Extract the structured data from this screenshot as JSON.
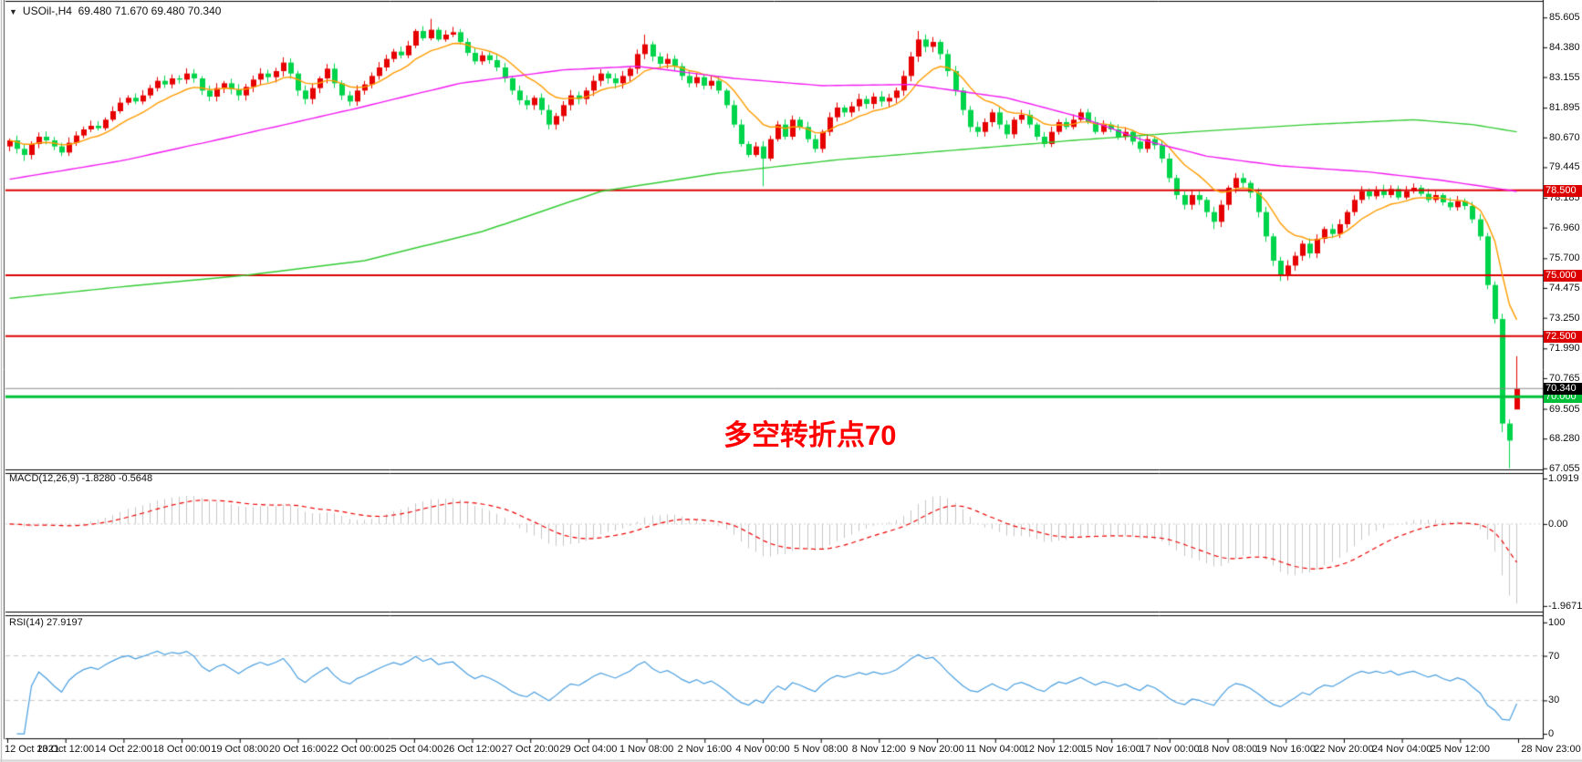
{
  "window": {
    "symbol_title": "USOil-,H4",
    "ohlc_text": "69.480 71.670 69.480 70.340",
    "dropdown_icon": "▼"
  },
  "main_chart": {
    "annotation": {
      "text": "多空转折点70",
      "color": "#ff0000"
    },
    "price_axis_labels": [
      "85.605",
      "84.380",
      "83.155",
      "81.895",
      "80.670",
      "79.445",
      "78.185",
      "76.960",
      "75.700",
      "74.475",
      "73.250",
      "71.990",
      "70.765",
      "69.505",
      "68.280",
      "67.055"
    ],
    "hlines": [
      {
        "price": 78.5,
        "label": "78.500",
        "color": "#dd0000",
        "width": 2
      },
      {
        "price": 75.0,
        "label": "75.000",
        "color": "#dd0000",
        "width": 2
      },
      {
        "price": 72.5,
        "label": "72.500",
        "color": "#dd0000",
        "width": 2
      },
      {
        "price": 70.0,
        "label": "70.000",
        "color": "#00c03a",
        "width": 3
      }
    ],
    "current_price": {
      "price": 70.34,
      "label": "70.340",
      "line_color": "#8a8a8a",
      "box_bg": "#000000"
    }
  },
  "macd_panel": {
    "label": "MACD(12,26,9) -1.8280 -0.5648",
    "params": {
      "fast": 12,
      "slow": 26,
      "signal": 9
    },
    "axis_labels": [
      {
        "v": 1.0919,
        "t": "1.0919"
      },
      {
        "v": 0,
        "t": "0.00"
      },
      {
        "v": -1.9671,
        "t": "-1.9671"
      }
    ],
    "histogram_color": "#c6c6c6",
    "signal_color": "#ee0000",
    "view": [
      -2.08,
      1.2
    ]
  },
  "rsi_panel": {
    "label": "RSI(14) 27.9197",
    "period": 14,
    "axis_labels": [
      {
        "v": 100,
        "t": "100"
      },
      {
        "v": 70,
        "t": "70"
      },
      {
        "v": 30,
        "t": "30"
      },
      {
        "v": 0,
        "t": "0"
      }
    ],
    "levels": [
      70,
      30
    ],
    "line_color": "#4a9fe0",
    "level_color": "#c9c9c9",
    "view": [
      -3.2,
      105.6
    ]
  },
  "time_axis": {
    "labels": [
      "12 Oct 2021",
      "13 Oct 12:00",
      "14 Oct 22:00",
      "18 Oct 00:00",
      "19 Oct 08:00",
      "20 Oct 16:00",
      "22 Oct 00:00",
      "25 Oct 04:00",
      "26 Oct 12:00",
      "27 Oct 20:00",
      "29 Oct 04:00",
      "1 Nov 08:00",
      "2 Nov 16:00",
      "4 Nov 00:00",
      "5 Nov 08:00",
      "8 Nov 12:00",
      "9 Nov 20:00",
      "11 Nov 04:00",
      "12 Nov 12:00",
      "15 Nov 16:00",
      "17 Nov 00:00",
      "18 Nov 08:00",
      "19 Nov 16:00",
      "22 Nov 20:00",
      "24 Nov 04:00",
      "25 Nov 12:00",
      "28 Nov 23:00"
    ]
  },
  "chart_data": {
    "type": "candlestick",
    "symbol": "USOil-",
    "timeframe": "H4",
    "title": "USOil-,H4 69.480 71.670 69.480 70.340",
    "up_color": "#e60000",
    "down_color": "#00d44a",
    "price_view": [
      67.05,
      86.25
    ],
    "first_open": 80.3,
    "closes": [
      80.55,
      80.2,
      79.95,
      80.4,
      80.7,
      80.55,
      80.3,
      80.05,
      80.45,
      80.75,
      81.0,
      81.15,
      81.05,
      81.4,
      81.75,
      82.1,
      82.3,
      82.15,
      82.4,
      82.7,
      83.0,
      82.85,
      83.1,
      83.05,
      83.3,
      83.1,
      82.6,
      82.35,
      82.7,
      82.9,
      82.65,
      82.4,
      82.75,
      83.05,
      83.3,
      83.15,
      83.4,
      83.75,
      83.3,
      82.6,
      82.25,
      82.7,
      83.1,
      83.5,
      82.9,
      82.4,
      82.15,
      82.6,
      82.85,
      83.2,
      83.55,
      83.9,
      84.2,
      84.05,
      84.45,
      85.05,
      84.75,
      85.1,
      84.7,
      84.9,
      85.0,
      84.6,
      84.15,
      83.8,
      84.05,
      83.85,
      83.55,
      83.1,
      82.6,
      82.2,
      82.0,
      82.3,
      81.8,
      81.2,
      81.55,
      82.0,
      82.4,
      82.25,
      82.6,
      83.0,
      83.3,
      83.1,
      82.9,
      83.2,
      83.5,
      84.1,
      84.5,
      84.0,
      83.7,
      83.9,
      83.6,
      83.2,
      82.9,
      83.15,
      82.8,
      83.0,
      82.6,
      82.0,
      81.2,
      80.4,
      79.95,
      80.3,
      79.8,
      80.6,
      81.2,
      80.7,
      81.4,
      81.1,
      80.6,
      80.2,
      80.9,
      81.5,
      81.9,
      81.7,
      81.95,
      82.25,
      82.05,
      82.35,
      82.15,
      82.3,
      82.6,
      83.2,
      84.0,
      84.7,
      84.4,
      84.6,
      84.1,
      83.4,
      82.6,
      81.8,
      81.1,
      80.9,
      81.3,
      81.7,
      81.2,
      80.8,
      81.4,
      81.6,
      81.2,
      80.7,
      80.4,
      80.9,
      81.3,
      81.1,
      81.4,
      81.7,
      81.3,
      80.9,
      81.2,
      81.0,
      80.7,
      80.9,
      80.5,
      80.2,
      80.6,
      80.35,
      79.8,
      79.0,
      78.3,
      77.9,
      78.3,
      78.1,
      77.6,
      77.2,
      77.9,
      78.6,
      79.0,
      78.8,
      78.4,
      77.6,
      76.6,
      75.6,
      75.0,
      75.4,
      75.8,
      76.3,
      75.9,
      76.5,
      76.9,
      76.7,
      77.1,
      77.6,
      78.1,
      78.45,
      78.25,
      78.5,
      78.3,
      78.55,
      78.2,
      78.45,
      78.6,
      78.35,
      78.1,
      78.3,
      78.0,
      77.8,
      78.05,
      77.85,
      77.3,
      76.6,
      74.6,
      73.2,
      68.9,
      68.2,
      70.34
    ],
    "wick_overrides": [
      {
        "i": 2,
        "l": 79.7
      },
      {
        "i": 57,
        "h": 85.55
      },
      {
        "i": 86,
        "h": 84.9
      },
      {
        "i": 102,
        "l": 78.66
      },
      {
        "i": 123,
        "h": 85.05
      },
      {
        "i": 163,
        "l": 76.9
      },
      {
        "i": 172,
        "l": 74.76
      },
      {
        "i": 202,
        "l": 68.55
      },
      {
        "i": 203,
        "l": 67.06
      },
      {
        "i": 204,
        "o": 69.48,
        "h": 71.67,
        "l": 69.48,
        "c": 70.34
      }
    ],
    "mas": [
      {
        "name": "fast-ema",
        "type": "ema",
        "period": 10,
        "color": "#ff9c00"
      },
      {
        "name": "mid-ma",
        "type": "points",
        "color": "#f21af2",
        "points": [
          [
            0,
            78.95
          ],
          [
            15,
            79.7
          ],
          [
            30,
            80.7
          ],
          [
            46,
            81.8
          ],
          [
            61,
            82.9
          ],
          [
            75,
            83.45
          ],
          [
            85,
            83.6
          ],
          [
            98,
            83.1
          ],
          [
            110,
            82.8
          ],
          [
            122,
            82.85
          ],
          [
            135,
            82.3
          ],
          [
            145,
            81.5
          ],
          [
            153,
            80.6
          ],
          [
            162,
            79.9
          ],
          [
            172,
            79.5
          ],
          [
            184,
            79.25
          ],
          [
            194,
            78.9
          ],
          [
            204,
            78.45
          ]
        ]
      },
      {
        "name": "slow-ma",
        "type": "points",
        "color": "#33cc33",
        "points": [
          [
            0,
            74.05
          ],
          [
            16,
            74.55
          ],
          [
            32,
            75.0
          ],
          [
            48,
            75.6
          ],
          [
            64,
            76.8
          ],
          [
            80,
            78.45
          ],
          [
            96,
            79.2
          ],
          [
            112,
            79.75
          ],
          [
            128,
            80.15
          ],
          [
            144,
            80.55
          ],
          [
            160,
            80.9
          ],
          [
            176,
            81.2
          ],
          [
            190,
            81.4
          ],
          [
            198,
            81.2
          ],
          [
            204,
            80.9
          ]
        ]
      }
    ]
  }
}
